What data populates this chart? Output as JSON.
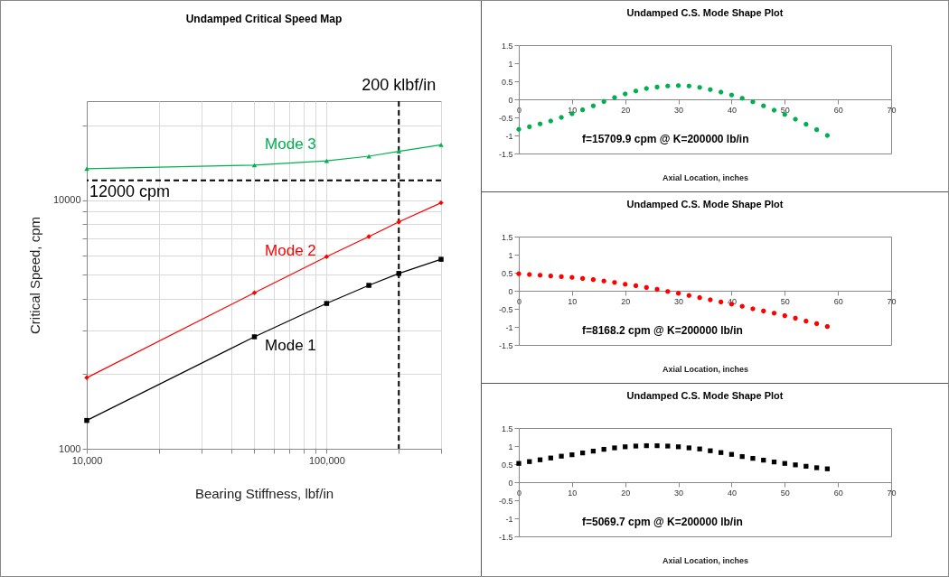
{
  "chart_data": [
    {
      "type": "line",
      "title": "Undamped Critical Speed Map",
      "xlabel": "Bearing Stiffness, lbf/in",
      "ylabel": "Critical Speed, cpm",
      "log": "xy",
      "grid": true,
      "x": [
        10000,
        50000,
        100000,
        150000,
        200000,
        300000
      ],
      "xlim": [
        10000,
        300000
      ],
      "ylim": [
        1000,
        25000
      ],
      "xticks": [
        {
          "value": 10000,
          "label": "10,000"
        },
        {
          "value": 20000,
          "label": null
        },
        {
          "value": 30000,
          "label": null
        },
        {
          "value": 40000,
          "label": null
        },
        {
          "value": 50000,
          "label": null
        },
        {
          "value": 60000,
          "label": null
        },
        {
          "value": 70000,
          "label": null
        },
        {
          "value": 80000,
          "label": null
        },
        {
          "value": 90000,
          "label": null
        },
        {
          "value": 100000,
          "label": "100,000"
        },
        {
          "value": 200000,
          "label": null
        },
        {
          "value": 300000,
          "label": null
        }
      ],
      "yticks": [
        1000,
        {
          "value": 2000,
          "label": null
        },
        {
          "value": 3000,
          "label": null
        },
        {
          "value": 4000,
          "label": null
        },
        {
          "value": 5000,
          "label": null
        },
        {
          "value": 6000,
          "label": null
        },
        {
          "value": 7000,
          "label": null
        },
        {
          "value": 8000,
          "label": null
        },
        {
          "value": 9000,
          "label": null
        },
        10000,
        {
          "value": 20000,
          "label": null
        }
      ],
      "series": [
        {
          "name": "Mode 1",
          "color": "#000000",
          "marker": "square",
          "values": [
            1300,
            2820,
            3840,
            4540,
            5069.7,
            5780
          ]
        },
        {
          "name": "Mode 2",
          "color": "#ff0000",
          "marker": "diamond",
          "values": [
            1930,
            4240,
            5920,
            7130,
            8168.2,
            9750
          ]
        },
        {
          "name": "Mode 3",
          "color": "#00b050",
          "marker": "triangle",
          "values": [
            13360,
            13830,
            14390,
            15010,
            15709.9,
            16680
          ]
        }
      ],
      "ref_lines": [
        {
          "axis": "y",
          "value": 12000,
          "label": "12000 cpm",
          "color": "#000000",
          "line_style": "dashed"
        },
        {
          "axis": "x",
          "value": 200000,
          "label": "200 klbf/in",
          "color": "#000000",
          "line_style": "dashed"
        }
      ]
    },
    {
      "type": "scatter",
      "title": "Undamped C.S. Mode Shape Plot",
      "xlabel": "Axial Location, inches",
      "marker": "circle",
      "x": [
        0,
        2,
        4,
        6,
        8,
        10,
        12,
        14,
        16,
        18,
        20,
        22,
        24,
        26,
        28,
        30,
        32,
        34,
        36,
        38,
        40,
        42,
        44,
        46,
        48,
        50,
        52,
        54,
        56,
        58
      ],
      "xlim": [
        0,
        70
      ],
      "ylim": [
        -1.5,
        1.5
      ],
      "xticks": [
        0,
        10,
        20,
        30,
        40,
        50,
        60,
        70
      ],
      "yticks": [
        -1.5,
        -1,
        -0.5,
        0,
        0.5,
        1,
        1.5
      ],
      "series": [
        {
          "color": "#00b050",
          "values": [
            -0.83,
            -0.76,
            -0.68,
            -0.6,
            -0.5,
            -0.4,
            -0.29,
            -0.18,
            -0.06,
            0.05,
            0.15,
            0.23,
            0.3,
            0.34,
            0.37,
            0.38,
            0.37,
            0.33,
            0.27,
            0.2,
            0.12,
            0.03,
            -0.07,
            -0.18,
            -0.3,
            -0.42,
            -0.55,
            -0.69,
            -0.84,
            -1.0
          ]
        }
      ],
      "annotations": [
        "f=15709.9 cpm @ K=200000 lb/in"
      ]
    },
    {
      "type": "scatter",
      "title": "Undamped C.S. Mode Shape Plot",
      "xlabel": "Axial Location, inches",
      "marker": "circle",
      "x": [
        0,
        2,
        4,
        6,
        8,
        10,
        12,
        14,
        16,
        18,
        20,
        22,
        24,
        26,
        28,
        30,
        32,
        34,
        36,
        38,
        40,
        42,
        44,
        46,
        48,
        50,
        52,
        54,
        56,
        58
      ],
      "xlim": [
        0,
        70
      ],
      "ylim": [
        -1.5,
        1.5
      ],
      "xticks": [
        0,
        10,
        20,
        30,
        40,
        50,
        60,
        70
      ],
      "yticks": [
        -1.5,
        -1,
        -0.5,
        0,
        0.5,
        1,
        1.5
      ],
      "series": [
        {
          "color": "#ff0000",
          "values": [
            0.47,
            0.45,
            0.43,
            0.41,
            0.39,
            0.37,
            0.34,
            0.31,
            0.27,
            0.23,
            0.18,
            0.14,
            0.09,
            0.04,
            -0.02,
            -0.07,
            -0.13,
            -0.19,
            -0.25,
            -0.31,
            -0.37,
            -0.43,
            -0.5,
            -0.56,
            -0.62,
            -0.69,
            -0.76,
            -0.84,
            -0.91,
            -0.99
          ]
        }
      ],
      "annotations": [
        "f=8168.2 cpm @ K=200000 lb/in"
      ]
    },
    {
      "type": "scatter",
      "title": "Undamped C.S. Mode Shape Plot",
      "xlabel": "Axial Location, inches",
      "marker": "square",
      "x": [
        0,
        2,
        4,
        6,
        8,
        10,
        12,
        14,
        16,
        18,
        20,
        22,
        24,
        26,
        28,
        30,
        32,
        34,
        36,
        38,
        40,
        42,
        44,
        46,
        48,
        50,
        52,
        54,
        56,
        58
      ],
      "xlim": [
        0,
        70
      ],
      "ylim": [
        -1.5,
        1.5
      ],
      "xticks": [
        0,
        10,
        20,
        30,
        40,
        50,
        60,
        70
      ],
      "yticks": [
        -1.5,
        -1,
        -0.5,
        0,
        0.5,
        1,
        1.5
      ],
      "series": [
        {
          "color": "#000000",
          "values": [
            0.52,
            0.57,
            0.62,
            0.67,
            0.72,
            0.76,
            0.81,
            0.86,
            0.91,
            0.95,
            0.98,
            1.0,
            1.01,
            1.01,
            1.0,
            0.98,
            0.95,
            0.92,
            0.87,
            0.82,
            0.77,
            0.71,
            0.66,
            0.61,
            0.56,
            0.52,
            0.48,
            0.44,
            0.4,
            0.37
          ]
        }
      ],
      "annotations": [
        "f=5069.7 cpm @ K=200000 lb/in"
      ]
    }
  ]
}
